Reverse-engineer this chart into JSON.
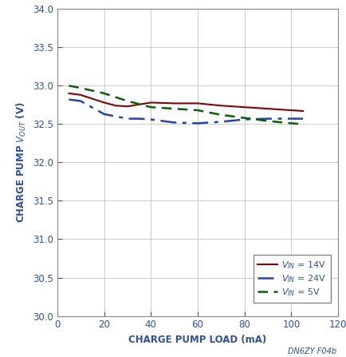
{
  "title": "",
  "xlabel": "CHARGE PUMP LOAD (mA)",
  "xlim": [
    0,
    120
  ],
  "ylim": [
    30.0,
    34.0
  ],
  "xticks": [
    0,
    20,
    40,
    60,
    80,
    100,
    120
  ],
  "yticks": [
    30.0,
    30.5,
    31.0,
    31.5,
    32.0,
    32.5,
    33.0,
    33.5,
    34.0
  ],
  "caption": "DN6ZY F04b",
  "series": [
    {
      "label_sub": "IN",
      "label_val": "14V",
      "color": "#8B0000",
      "linestyle": "solid",
      "linewidth": 1.5,
      "x": [
        5,
        10,
        20,
        25,
        30,
        40,
        50,
        60,
        70,
        80,
        90,
        100,
        105
      ],
      "y": [
        32.9,
        32.88,
        32.78,
        32.74,
        32.73,
        32.78,
        32.77,
        32.77,
        32.74,
        32.72,
        32.7,
        32.68,
        32.67
      ]
    },
    {
      "label_sub": "IN",
      "label_val": "24V",
      "color": "#2244BB",
      "linestyle": "dashed_long",
      "linewidth": 1.8,
      "x": [
        5,
        10,
        20,
        25,
        30,
        35,
        40,
        50,
        60,
        70,
        80,
        90,
        100,
        105
      ],
      "y": [
        32.82,
        32.8,
        32.63,
        32.6,
        32.57,
        32.57,
        32.56,
        32.52,
        32.51,
        32.53,
        32.56,
        32.57,
        32.57,
        32.57
      ]
    },
    {
      "label_sub": "IN",
      "label_val": "5V",
      "color": "#006400",
      "linestyle": "dashed_short",
      "linewidth": 1.8,
      "x": [
        5,
        10,
        20,
        30,
        40,
        50,
        60,
        70,
        80,
        90,
        100,
        105
      ],
      "y": [
        33.0,
        32.97,
        32.9,
        32.8,
        32.72,
        32.7,
        32.68,
        32.62,
        32.58,
        32.54,
        32.51,
        32.5
      ]
    }
  ],
  "grid_color": "#cccccc",
  "background_color": "#ffffff",
  "axis_label_color": "#3050A0",
  "tick_label_color": "#3050A0",
  "label_fontsize": 8.5,
  "tick_fontsize": 8.5,
  "legend_fontsize": 8.0,
  "caption_color": "#3050A0",
  "caption_fontsize": 7.0
}
